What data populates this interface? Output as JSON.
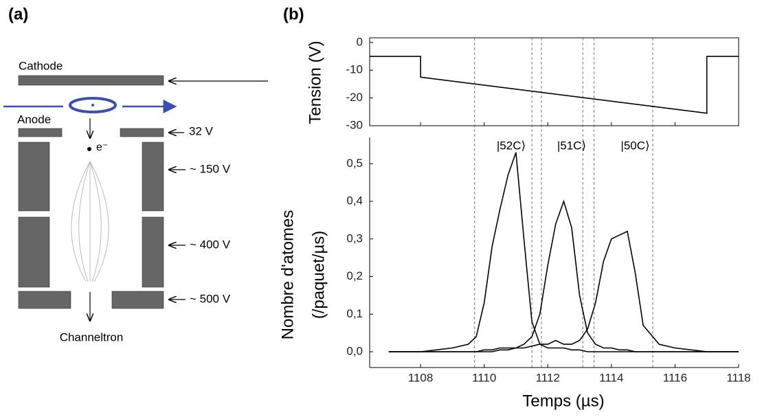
{
  "diagram": {
    "panel_a": "(a)",
    "panel_b": "(b)",
    "cathode": "Cathode",
    "anode": "Anode",
    "electron": "e⁻",
    "v1": "32 V",
    "v2": "~ 150 V",
    "v3": "~ 400 V",
    "v4": "~ 500 V",
    "detector": "Channeltron"
  },
  "chart_data": [
    {
      "type": "line",
      "ylabel": "Tension (V)",
      "x": [
        1106.4,
        1108,
        1108,
        1117,
        1117,
        1118
      ],
      "series": [
        {
          "name": "Tension",
          "color": "#000000",
          "values": [
            -5,
            -5,
            -12.5,
            -25.5,
            -5,
            -5
          ]
        }
      ],
      "xlim": [
        1106.4,
        1118
      ],
      "xticks": [
        1108,
        1110,
        1112,
        1114,
        1116,
        1118
      ],
      "ylim": [
        -30,
        1.7
      ],
      "yticks": [
        0,
        -10,
        -20,
        -30
      ],
      "dashed_lines": [
        1109.7,
        1111.5,
        1111.8,
        1113.1,
        1113.45,
        1115.3
      ]
    },
    {
      "type": "line",
      "xlabel": "Temps (µs)",
      "ylabel": [
        "Nombre d'atomes",
        "(/paquet/µs)"
      ],
      "x": [
        1107,
        1108,
        1109,
        1109.5,
        1109.75,
        1110,
        1110.25,
        1110.5,
        1110.75,
        1111,
        1111.25,
        1111.5,
        1111.75,
        1112,
        1112.25,
        1112.5,
        1112.75,
        1113,
        1113.25,
        1113.5,
        1113.75,
        1114,
        1114.25,
        1114.5,
        1114.75,
        1115,
        1115.5,
        1116,
        1117,
        1118
      ],
      "series": [
        {
          "name": "|52C⟩",
          "color": "#000000",
          "values": [
            0,
            0,
            0.01,
            0.02,
            0.04,
            0.13,
            0.28,
            0.38,
            0.47,
            0.53,
            0.3,
            0.08,
            0.02,
            0.01,
            0.01,
            0.01,
            0.005,
            0.005,
            0,
            0,
            0,
            0,
            0,
            0,
            0,
            0,
            0,
            0,
            0,
            0
          ]
        },
        {
          "name": "|51C⟩",
          "color": "#000000",
          "values": [
            0,
            0,
            0,
            0,
            0,
            0.005,
            0.005,
            0.01,
            0.01,
            0.01,
            0.02,
            0.04,
            0.1,
            0.23,
            0.34,
            0.4,
            0.33,
            0.15,
            0.05,
            0.02,
            0.01,
            0.01,
            0.005,
            0.005,
            0,
            0,
            0,
            0,
            0,
            0
          ]
        },
        {
          "name": "|50C⟩",
          "color": "#000000",
          "values": [
            0,
            0,
            0,
            0,
            0,
            0,
            0,
            0.005,
            0.005,
            0.01,
            0.01,
            0.015,
            0.02,
            0.02,
            0.03,
            0.02,
            0.02,
            0.03,
            0.06,
            0.13,
            0.24,
            0.3,
            0.31,
            0.32,
            0.21,
            0.07,
            0.02,
            0.01,
            0,
            0
          ]
        }
      ],
      "annotation_x": [
        1110.85,
        1112.75,
        1114.75
      ],
      "xlim": [
        1106.4,
        1118
      ],
      "xticks": [
        1108,
        1110,
        1112,
        1114,
        1116,
        1118
      ],
      "ylim": [
        -0.042,
        0.57
      ],
      "yticks": [
        {
          "value": 0,
          "label": "0,0"
        },
        {
          "value": 0.1,
          "label": "0,1"
        },
        {
          "value": 0.2,
          "label": "0,2"
        },
        {
          "value": 0.3,
          "label": "0,3"
        },
        {
          "value": 0.4,
          "label": "0,4"
        },
        {
          "value": 0.5,
          "label": "0,5"
        }
      ]
    }
  ]
}
